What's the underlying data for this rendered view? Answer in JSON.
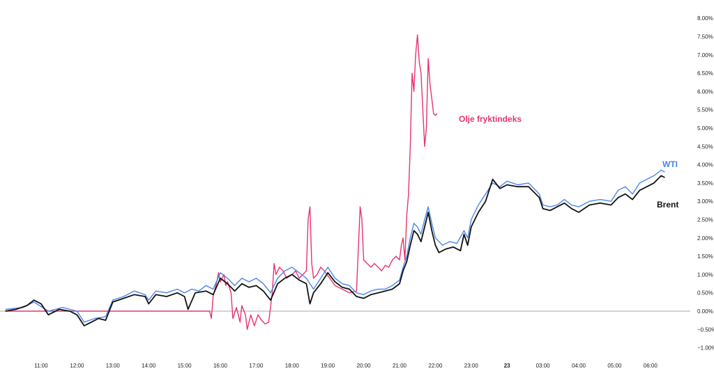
{
  "chart_data": {
    "type": "line",
    "title": "",
    "xlabel": "",
    "ylabel": "",
    "y_unit": "%",
    "ylim": [
      -1.0,
      8.0
    ],
    "y_ticks": [
      "8.00%",
      "7.50%",
      "7.00%",
      "6.50%",
      "6.00%",
      "5.50%",
      "5.00%",
      "4.50%",
      "4.00%",
      "3.50%",
      "3.00%",
      "2.50%",
      "2.00%",
      "1.50%",
      "1.00%",
      "0.50%",
      "0.00%",
      "−0.50%",
      "−1.00%"
    ],
    "x_ticks": [
      {
        "label": "11:00",
        "h": 11.0,
        "bold": false
      },
      {
        "label": "12:00",
        "h": 12.0,
        "bold": false
      },
      {
        "label": "13:00",
        "h": 13.0,
        "bold": false
      },
      {
        "label": "14:00",
        "h": 14.0,
        "bold": false
      },
      {
        "label": "15:00",
        "h": 15.0,
        "bold": false
      },
      {
        "label": "16:00",
        "h": 16.0,
        "bold": false
      },
      {
        "label": "17:00",
        "h": 17.0,
        "bold": false
      },
      {
        "label": "18:00",
        "h": 18.0,
        "bold": false
      },
      {
        "label": "19:00",
        "h": 19.0,
        "bold": false
      },
      {
        "label": "20:00",
        "h": 20.0,
        "bold": false
      },
      {
        "label": "21:00",
        "h": 21.0,
        "bold": false
      },
      {
        "label": "22:00",
        "h": 22.0,
        "bold": false
      },
      {
        "label": "23:00",
        "h": 23.0,
        "bold": false
      },
      {
        "label": "23",
        "h": 24.0,
        "bold": true
      },
      {
        "label": "03:00",
        "h": 25.0,
        "bold": false
      },
      {
        "label": "04:00",
        "h": 26.0,
        "bold": false
      },
      {
        "label": "05:00",
        "h": 27.0,
        "bold": false
      },
      {
        "label": "06:00",
        "h": 28.0,
        "bold": false
      }
    ],
    "zero_line": true,
    "grid": false,
    "series": [
      {
        "name": "Olje fryktindeks",
        "color": "#e8336e",
        "points": [
          [
            10.0,
            0
          ],
          [
            15.7,
            0
          ],
          [
            15.75,
            -0.2
          ],
          [
            15.8,
            0.4
          ],
          [
            15.85,
            0.6
          ],
          [
            15.9,
            0.8
          ],
          [
            15.95,
            1.05
          ],
          [
            16.0,
            0.8
          ],
          [
            16.05,
            0.9
          ],
          [
            16.1,
            1.0
          ],
          [
            16.15,
            0.7
          ],
          [
            16.2,
            0.8
          ],
          [
            16.3,
            0.5
          ],
          [
            16.35,
            -0.2
          ],
          [
            16.45,
            0.1
          ],
          [
            16.55,
            -0.3
          ],
          [
            16.6,
            0.15
          ],
          [
            16.7,
            -0.1
          ],
          [
            16.75,
            -0.5
          ],
          [
            16.85,
            -0.1
          ],
          [
            16.95,
            -0.4
          ],
          [
            17.05,
            -0.1
          ],
          [
            17.15,
            -0.25
          ],
          [
            17.25,
            -0.35
          ],
          [
            17.35,
            -0.3
          ],
          [
            17.45,
            0.5
          ],
          [
            17.5,
            1.3
          ],
          [
            17.55,
            1.0
          ],
          [
            17.65,
            1.2
          ],
          [
            17.75,
            1.1
          ],
          [
            17.85,
            0.9
          ],
          [
            18.0,
            1.0
          ],
          [
            18.1,
            1.1
          ],
          [
            18.2,
            0.9
          ],
          [
            18.3,
            1.0
          ],
          [
            18.4,
            1.1
          ],
          [
            18.45,
            2.5
          ],
          [
            18.5,
            2.85
          ],
          [
            18.55,
            1.3
          ],
          [
            18.6,
            0.9
          ],
          [
            18.7,
            1.0
          ],
          [
            18.8,
            1.2
          ],
          [
            18.9,
            1.1
          ],
          [
            19.05,
            0.9
          ],
          [
            19.2,
            0.7
          ],
          [
            19.4,
            0.6
          ],
          [
            19.6,
            0.5
          ],
          [
            19.8,
            0.55
          ],
          [
            19.9,
            2.85
          ],
          [
            19.95,
            2.5
          ],
          [
            20.0,
            1.4
          ],
          [
            20.1,
            1.3
          ],
          [
            20.2,
            1.2
          ],
          [
            20.3,
            1.3
          ],
          [
            20.4,
            1.2
          ],
          [
            20.5,
            1.1
          ],
          [
            20.6,
            1.25
          ],
          [
            20.7,
            1.2
          ],
          [
            20.8,
            1.4
          ],
          [
            20.9,
            1.5
          ],
          [
            21.0,
            1.4
          ],
          [
            21.05,
            1.8
          ],
          [
            21.1,
            2.0
          ],
          [
            21.15,
            1.4
          ],
          [
            21.2,
            2.6
          ],
          [
            21.25,
            3.2
          ],
          [
            21.3,
            4.5
          ],
          [
            21.35,
            6.5
          ],
          [
            21.4,
            6.0
          ],
          [
            21.45,
            7.0
          ],
          [
            21.5,
            7.55
          ],
          [
            21.55,
            6.8
          ],
          [
            21.6,
            6.5
          ],
          [
            21.65,
            5.5
          ],
          [
            21.7,
            4.5
          ],
          [
            21.75,
            5.0
          ],
          [
            21.8,
            6.9
          ],
          [
            21.85,
            6.2
          ],
          [
            21.9,
            5.8
          ],
          [
            21.95,
            5.4
          ],
          [
            22.0,
            5.35
          ],
          [
            22.05,
            5.4
          ]
        ]
      },
      {
        "name": "WTI",
        "color": "#4a86e8",
        "points": [
          [
            10.0,
            0.05
          ],
          [
            10.5,
            0.1
          ],
          [
            10.8,
            0.25
          ],
          [
            11.2,
            0.0
          ],
          [
            11.6,
            0.1
          ],
          [
            12.0,
            0.0
          ],
          [
            12.2,
            -0.3
          ],
          [
            12.5,
            -0.2
          ],
          [
            12.8,
            -0.15
          ],
          [
            13.0,
            0.3
          ],
          [
            13.3,
            0.4
          ],
          [
            13.6,
            0.55
          ],
          [
            13.9,
            0.45
          ],
          [
            14.0,
            0.3
          ],
          [
            14.2,
            0.55
          ],
          [
            14.5,
            0.5
          ],
          [
            14.8,
            0.6
          ],
          [
            15.0,
            0.5
          ],
          [
            15.2,
            0.6
          ],
          [
            15.4,
            0.55
          ],
          [
            15.6,
            0.7
          ],
          [
            15.8,
            0.6
          ],
          [
            16.0,
            1.05
          ],
          [
            16.2,
            0.9
          ],
          [
            16.4,
            0.7
          ],
          [
            16.6,
            0.9
          ],
          [
            16.8,
            0.8
          ],
          [
            17.0,
            0.9
          ],
          [
            17.2,
            0.75
          ],
          [
            17.4,
            0.5
          ],
          [
            17.6,
            0.9
          ],
          [
            17.8,
            1.1
          ],
          [
            18.0,
            1.2
          ],
          [
            18.2,
            1.05
          ],
          [
            18.4,
            0.9
          ],
          [
            18.6,
            0.6
          ],
          [
            18.8,
            0.9
          ],
          [
            19.0,
            1.2
          ],
          [
            19.2,
            0.9
          ],
          [
            19.4,
            0.75
          ],
          [
            19.6,
            0.7
          ],
          [
            19.8,
            0.5
          ],
          [
            20.0,
            0.45
          ],
          [
            20.2,
            0.55
          ],
          [
            20.4,
            0.6
          ],
          [
            20.6,
            0.6
          ],
          [
            20.8,
            0.7
          ],
          [
            21.0,
            0.85
          ],
          [
            21.1,
            1.2
          ],
          [
            21.2,
            1.5
          ],
          [
            21.3,
            2.0
          ],
          [
            21.4,
            2.4
          ],
          [
            21.5,
            2.3
          ],
          [
            21.6,
            2.1
          ],
          [
            21.7,
            2.5
          ],
          [
            21.8,
            2.85
          ],
          [
            21.9,
            2.4
          ],
          [
            22.0,
            2.0
          ],
          [
            22.2,
            1.8
          ],
          [
            22.4,
            1.9
          ],
          [
            22.6,
            1.85
          ],
          [
            22.8,
            2.2
          ],
          [
            22.9,
            2.0
          ],
          [
            23.0,
            2.5
          ],
          [
            23.2,
            2.9
          ],
          [
            23.4,
            3.2
          ],
          [
            23.6,
            3.5
          ],
          [
            23.8,
            3.4
          ],
          [
            24.0,
            3.55
          ],
          [
            24.3,
            3.45
          ],
          [
            24.6,
            3.5
          ],
          [
            24.9,
            3.2
          ],
          [
            25.0,
            2.9
          ],
          [
            25.2,
            2.85
          ],
          [
            25.4,
            2.9
          ],
          [
            25.6,
            3.05
          ],
          [
            25.8,
            2.9
          ],
          [
            26.0,
            2.85
          ],
          [
            26.3,
            3.0
          ],
          [
            26.6,
            3.05
          ],
          [
            26.9,
            3.0
          ],
          [
            27.1,
            3.3
          ],
          [
            27.3,
            3.4
          ],
          [
            27.5,
            3.2
          ],
          [
            27.7,
            3.5
          ],
          [
            27.9,
            3.6
          ],
          [
            28.1,
            3.7
          ],
          [
            28.3,
            3.85
          ],
          [
            28.4,
            3.8
          ]
        ]
      },
      {
        "name": "Brent",
        "color": "#111111",
        "points": [
          [
            10.0,
            0.0
          ],
          [
            10.3,
            0.05
          ],
          [
            10.6,
            0.15
          ],
          [
            10.8,
            0.3
          ],
          [
            11.0,
            0.2
          ],
          [
            11.2,
            -0.1
          ],
          [
            11.5,
            0.05
          ],
          [
            11.8,
            0.0
          ],
          [
            12.0,
            -0.1
          ],
          [
            12.2,
            -0.4
          ],
          [
            12.4,
            -0.3
          ],
          [
            12.6,
            -0.2
          ],
          [
            12.8,
            -0.25
          ],
          [
            13.0,
            0.25
          ],
          [
            13.3,
            0.35
          ],
          [
            13.6,
            0.45
          ],
          [
            13.9,
            0.4
          ],
          [
            14.0,
            0.2
          ],
          [
            14.2,
            0.45
          ],
          [
            14.5,
            0.4
          ],
          [
            14.8,
            0.5
          ],
          [
            15.0,
            0.4
          ],
          [
            15.1,
            0.05
          ],
          [
            15.3,
            0.5
          ],
          [
            15.6,
            0.55
          ],
          [
            15.8,
            0.45
          ],
          [
            16.0,
            0.9
          ],
          [
            16.2,
            0.75
          ],
          [
            16.4,
            0.55
          ],
          [
            16.6,
            0.75
          ],
          [
            16.8,
            0.65
          ],
          [
            17.0,
            0.7
          ],
          [
            17.2,
            0.55
          ],
          [
            17.4,
            0.3
          ],
          [
            17.6,
            0.75
          ],
          [
            17.8,
            0.9
          ],
          [
            18.0,
            1.0
          ],
          [
            18.2,
            0.85
          ],
          [
            18.4,
            0.75
          ],
          [
            18.5,
            0.2
          ],
          [
            18.6,
            0.5
          ],
          [
            18.8,
            0.75
          ],
          [
            19.0,
            1.05
          ],
          [
            19.2,
            0.8
          ],
          [
            19.4,
            0.65
          ],
          [
            19.6,
            0.6
          ],
          [
            19.8,
            0.4
          ],
          [
            20.0,
            0.35
          ],
          [
            20.2,
            0.45
          ],
          [
            20.4,
            0.5
          ],
          [
            20.6,
            0.55
          ],
          [
            20.8,
            0.6
          ],
          [
            21.0,
            0.75
          ],
          [
            21.1,
            1.1
          ],
          [
            21.2,
            1.35
          ],
          [
            21.3,
            1.8
          ],
          [
            21.4,
            2.2
          ],
          [
            21.5,
            2.1
          ],
          [
            21.6,
            1.9
          ],
          [
            21.7,
            2.3
          ],
          [
            21.8,
            2.7
          ],
          [
            21.9,
            2.2
          ],
          [
            22.0,
            1.8
          ],
          [
            22.1,
            1.6
          ],
          [
            22.3,
            1.7
          ],
          [
            22.5,
            1.75
          ],
          [
            22.7,
            1.65
          ],
          [
            22.8,
            2.1
          ],
          [
            22.9,
            1.8
          ],
          [
            23.0,
            2.3
          ],
          [
            23.2,
            2.7
          ],
          [
            23.4,
            3.0
          ],
          [
            23.6,
            3.6
          ],
          [
            23.8,
            3.35
          ],
          [
            24.0,
            3.45
          ],
          [
            24.3,
            3.4
          ],
          [
            24.6,
            3.4
          ],
          [
            24.9,
            3.1
          ],
          [
            25.0,
            2.8
          ],
          [
            25.2,
            2.75
          ],
          [
            25.4,
            2.85
          ],
          [
            25.6,
            2.95
          ],
          [
            25.8,
            2.8
          ],
          [
            26.0,
            2.7
          ],
          [
            26.3,
            2.9
          ],
          [
            26.6,
            2.95
          ],
          [
            26.9,
            2.9
          ],
          [
            27.1,
            3.1
          ],
          [
            27.3,
            3.2
          ],
          [
            27.5,
            3.05
          ],
          [
            27.7,
            3.3
          ],
          [
            27.9,
            3.4
          ],
          [
            28.1,
            3.5
          ],
          [
            28.3,
            3.7
          ],
          [
            28.4,
            3.65
          ]
        ]
      }
    ],
    "labels": {
      "fear_index": "Olje fryktindeks",
      "wti": "WTI",
      "brent": "Brent"
    }
  }
}
